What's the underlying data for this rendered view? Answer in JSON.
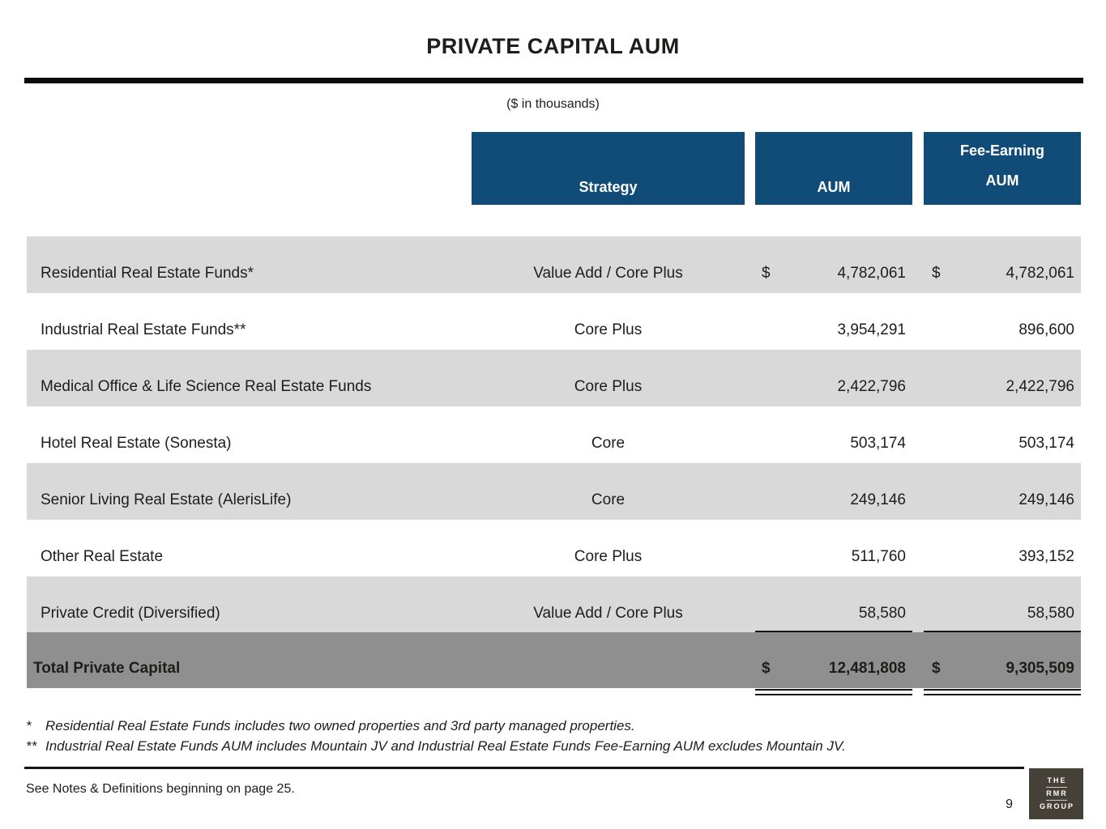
{
  "page": {
    "title": "PRIVATE CAPITAL AUM",
    "subtitle": "($ in thousands)",
    "page_number": "9",
    "see_notes": "See Notes & Definitions beginning on page 25.",
    "footnotes": [
      {
        "marker": "*",
        "text": "Residential Real Estate Funds includes two owned properties and 3rd party managed properties."
      },
      {
        "marker": "**",
        "text": "Industrial Real Estate Funds AUM includes Mountain JV and Industrial Real Estate Funds Fee-Earning AUM excludes Mountain JV."
      }
    ],
    "logo": {
      "line1": "THE",
      "line2": "RMR",
      "line3": "GROUP"
    }
  },
  "table": {
    "headers": {
      "strategy": "Strategy",
      "aum": "AUM",
      "fee_earning_line1": "Fee-Earning",
      "fee_earning_line2": "AUM"
    },
    "rows": [
      {
        "name": "Residential Real Estate Funds*",
        "strategy": "Value Add / Core Plus",
        "aum_dollar": "$",
        "aum": "4,782,061",
        "fee_dollar": "$",
        "fee": "4,782,061",
        "shaded": true,
        "underline": false
      },
      {
        "name": "Industrial Real Estate Funds**",
        "strategy": "Core Plus",
        "aum_dollar": "",
        "aum": "3,954,291",
        "fee_dollar": "",
        "fee": "896,600",
        "shaded": false,
        "underline": false
      },
      {
        "name": "Medical Office & Life Science Real Estate Funds",
        "strategy": "Core Plus",
        "aum_dollar": "",
        "aum": "2,422,796",
        "fee_dollar": "",
        "fee": "2,422,796",
        "shaded": true,
        "underline": false
      },
      {
        "name": "Hotel Real Estate (Sonesta)",
        "strategy": "Core",
        "aum_dollar": "",
        "aum": "503,174",
        "fee_dollar": "",
        "fee": "503,174",
        "shaded": false,
        "underline": false
      },
      {
        "name": "Senior Living Real Estate (AlerisLife)",
        "strategy": "Core",
        "aum_dollar": "",
        "aum": "249,146",
        "fee_dollar": "",
        "fee": "249,146",
        "shaded": true,
        "underline": false
      },
      {
        "name": "Other Real Estate",
        "strategy": "Core Plus",
        "aum_dollar": "",
        "aum": "511,760",
        "fee_dollar": "",
        "fee": "393,152",
        "shaded": false,
        "underline": false
      },
      {
        "name": "Private Credit (Diversified)",
        "strategy": "Value Add / Core Plus",
        "aum_dollar": "",
        "aum": "58,580",
        "fee_dollar": "",
        "fee": "58,580",
        "shaded": true,
        "underline": true
      }
    ],
    "total": {
      "label": "Total Private Capital",
      "aum_dollar": "$",
      "aum": "12,481,808",
      "fee_dollar": "$",
      "fee": "9,305,509"
    }
  },
  "colors": {
    "navy": "#114C78",
    "row_gray": "#D9D9D9",
    "total_gray": "#8F8F8F",
    "logo_bg": "#454038",
    "text": "#1D1D1B"
  }
}
